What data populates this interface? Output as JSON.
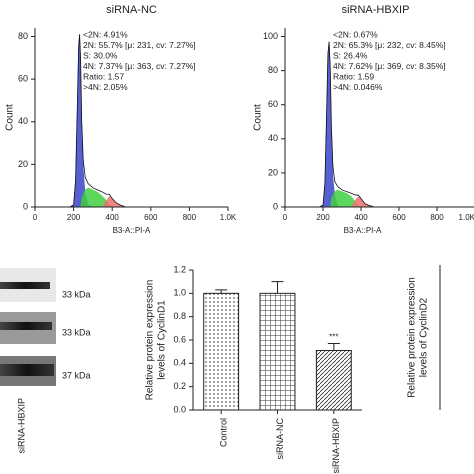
{
  "chart_data": [
    {
      "type": "area",
      "title": "siRNA-NC",
      "x_label": "B3-A::PI-A",
      "y_label": "Count",
      "xlim": [
        0,
        1000
      ],
      "ylim": [
        0,
        84
      ],
      "xticks": [
        0,
        200,
        400,
        600,
        800,
        {
          "value": 1000,
          "label": "1.0K"
        }
      ],
      "yticks": [
        0,
        20,
        40,
        60,
        80
      ],
      "annotations": [
        "<2N: 4.91%",
        "2N: 55.7% [μ: 231, cv: 7.27%]",
        "S: 30.0%",
        "4N: 7.37% [μ: 363, cv: 7.27%]",
        "Ratio: 1.57",
        ">4N: 2.05%"
      ],
      "x": [
        0,
        100,
        180,
        200,
        210,
        220,
        226,
        231,
        236,
        242,
        250,
        260,
        275,
        300,
        325,
        350,
        370,
        385,
        400,
        420,
        440,
        470,
        500,
        700,
        1000
      ],
      "series": [
        {
          "color": "#3a44c8",
          "values": [
            null,
            null,
            0,
            1,
            12,
            50,
            75,
            81,
            70,
            40,
            18,
            6,
            1,
            0,
            null,
            null,
            null,
            null,
            null,
            null,
            null,
            null,
            null,
            null,
            null
          ]
        },
        {
          "color": "#3fcf3f",
          "values": [
            null,
            null,
            null,
            null,
            null,
            null,
            null,
            null,
            0,
            4,
            6,
            8,
            9,
            8,
            7,
            5,
            3,
            1,
            0,
            null,
            null,
            null,
            null,
            null,
            null
          ]
        },
        {
          "color": "#f07070",
          "values": [
            null,
            null,
            null,
            null,
            null,
            null,
            null,
            null,
            null,
            null,
            null,
            null,
            null,
            null,
            null,
            0,
            3,
            5,
            4,
            2,
            1,
            0,
            null,
            null,
            null
          ]
        },
        {
          "color": "#111111",
          "values": [
            0,
            0,
            0,
            1,
            12,
            50,
            75,
            81,
            70,
            40,
            22,
            14,
            11,
            9,
            8,
            7,
            6,
            6,
            4,
            2,
            1,
            0,
            0,
            0,
            0
          ]
        }
      ]
    },
    {
      "type": "area",
      "title": "siRNA-HBXIP",
      "x_label": "B3-A::PI-A",
      "y_label": "Count",
      "xlim": [
        0,
        1000
      ],
      "ylim": [
        0,
        105
      ],
      "xticks": [
        0,
        200,
        400,
        600,
        800,
        {
          "value": 1000,
          "label": "1.0K"
        }
      ],
      "yticks": [
        0,
        20,
        40,
        60,
        80,
        100
      ],
      "annotations": [
        "<2N: 0.67%",
        "2N: 65.3% [μ: 232, cv: 8.45%]",
        "S: 26.4%",
        "4N: 7.62% [μ: 369, cv: 8.35%]",
        "Ratio: 1.59",
        ">4N: 0.046%"
      ],
      "x": [
        0,
        100,
        180,
        200,
        210,
        220,
        226,
        232,
        238,
        244,
        252,
        262,
        277,
        300,
        325,
        350,
        370,
        385,
        400,
        420,
        440,
        470,
        500,
        700,
        1000
      ],
      "series": [
        {
          "color": "#3a44c8",
          "values": [
            null,
            null,
            0,
            1,
            14,
            60,
            90,
            97,
            82,
            45,
            18,
            6,
            1,
            0,
            null,
            null,
            null,
            null,
            null,
            null,
            null,
            null,
            null,
            null,
            null
          ]
        },
        {
          "color": "#3fcf3f",
          "values": [
            null,
            null,
            null,
            null,
            null,
            null,
            null,
            null,
            0,
            5,
            7,
            9,
            10,
            9,
            8,
            6,
            3,
            1,
            0,
            null,
            null,
            null,
            null,
            null,
            null
          ]
        },
        {
          "color": "#f07070",
          "values": [
            null,
            null,
            null,
            null,
            null,
            null,
            null,
            null,
            null,
            null,
            null,
            null,
            null,
            null,
            null,
            0,
            4,
            6,
            5,
            2,
            1,
            0,
            null,
            null,
            null
          ]
        },
        {
          "color": "#111111",
          "values": [
            0,
            0,
            0,
            1,
            14,
            60,
            90,
            97,
            82,
            48,
            24,
            15,
            12,
            10,
            9,
            8,
            7,
            7,
            5,
            2,
            1,
            0,
            0,
            0,
            0
          ]
        }
      ]
    },
    {
      "type": "bar",
      "y_label": [
        "Relative protein expression",
        "levels of CyclinD1"
      ],
      "categories": [
        "Control",
        "siRNA-NC",
        "siRNA-HBXIP"
      ],
      "values": [
        1.0,
        1.0,
        0.51
      ],
      "errors": [
        0.03,
        0.1,
        0.06
      ],
      "significance": [
        null,
        null,
        "***"
      ],
      "ylim": [
        0,
        1.2
      ],
      "yticks": [
        {
          "value": 0,
          "label": "0.0"
        },
        {
          "value": 0.2,
          "label": "0.2"
        },
        {
          "value": 0.4,
          "label": "0.4"
        },
        {
          "value": 0.6,
          "label": "0.6"
        },
        {
          "value": 0.8,
          "label": "0.8"
        },
        {
          "value": 1,
          "label": "1.0"
        },
        {
          "value": 1.2,
          "label": "1.2"
        }
      ]
    },
    {
      "type": "axis-only",
      "y_label": [
        "Relative protein expression",
        "levels of CyclinD2"
      ]
    }
  ],
  "western_blot": {
    "labels": [
      "33 kDa",
      "33 kDa",
      "37 kDa"
    ],
    "lane_label": "siRNA-HBXIP"
  }
}
